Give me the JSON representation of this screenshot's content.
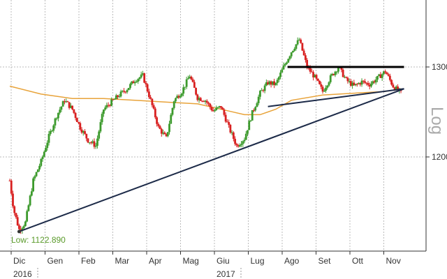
{
  "chart_data": {
    "type": "candlestick",
    "scale": "log",
    "scale_label": "Log",
    "grid": true,
    "months": [
      "Dic",
      "Gen",
      "Feb",
      "Mar",
      "Apr",
      "Mag",
      "Giu",
      "Lug",
      "Ago",
      "Set",
      "Ott",
      "Nov"
    ],
    "years": [
      {
        "label": "2016",
        "month_index": 0
      },
      {
        "label": "2017",
        "month_index": 6
      }
    ],
    "y_ticks": [
      1200,
      1300
    ],
    "ylim": [
      1105,
      1340
    ],
    "low_annotation": "Low: 1122.890",
    "low_value": 1122.89,
    "colors": {
      "up": "#3c9a2c",
      "down": "#d82020",
      "moving_average": "#e8a33a",
      "trendline": "#1c2a48",
      "resistance": "#000000",
      "low_label": "#5a9a2a"
    },
    "price_path": [
      [
        0,
        1175
      ],
      [
        0.5,
        1145
      ],
      [
        1.2,
        1125
      ],
      [
        2.0,
        1132
      ],
      [
        3.0,
        1175
      ],
      [
        4.0,
        1195
      ],
      [
        5.0,
        1222
      ],
      [
        6.0,
        1245
      ],
      [
        7.0,
        1262
      ],
      [
        8.0,
        1252
      ],
      [
        9.0,
        1232
      ],
      [
        10.0,
        1218
      ],
      [
        11.0,
        1212
      ],
      [
        12.0,
        1252
      ],
      [
        13.0,
        1260
      ],
      [
        14.0,
        1268
      ],
      [
        15.0,
        1275
      ],
      [
        16.0,
        1285
      ],
      [
        17.0,
        1290
      ],
      [
        18.0,
        1262
      ],
      [
        19.0,
        1232
      ],
      [
        20.0,
        1220
      ],
      [
        21.0,
        1262
      ],
      [
        22.0,
        1272
      ],
      [
        23.0,
        1290
      ],
      [
        24.0,
        1265
      ],
      [
        25.0,
        1262
      ],
      [
        26.0,
        1250
      ],
      [
        27.0,
        1255
      ],
      [
        28.0,
        1232
      ],
      [
        29.0,
        1212
      ],
      [
        30.0,
        1220
      ],
      [
        31.0,
        1248
      ],
      [
        32.0,
        1270
      ],
      [
        33.0,
        1282
      ],
      [
        34.0,
        1280
      ],
      [
        35.0,
        1300
      ],
      [
        36.0,
        1318
      ],
      [
        37.0,
        1332
      ],
      [
        38.0,
        1300
      ],
      [
        39.0,
        1288
      ],
      [
        40.0,
        1272
      ],
      [
        41.0,
        1288
      ],
      [
        42.0,
        1300
      ],
      [
        43.0,
        1285
      ],
      [
        44.0,
        1278
      ],
      [
        45.0,
        1283
      ],
      [
        46.0,
        1280
      ],
      [
        47.0,
        1287
      ],
      [
        48.0,
        1295
      ],
      [
        49.0,
        1278
      ],
      [
        50.0,
        1270
      ]
    ],
    "moving_average_path": [
      [
        0,
        1278
      ],
      [
        4,
        1269
      ],
      [
        8,
        1264
      ],
      [
        12,
        1264
      ],
      [
        16,
        1262
      ],
      [
        20,
        1260
      ],
      [
        24,
        1258
      ],
      [
        28,
        1250
      ],
      [
        30,
        1246
      ],
      [
        32,
        1246
      ],
      [
        34,
        1252
      ],
      [
        36,
        1262
      ],
      [
        40,
        1268
      ],
      [
        44,
        1270
      ],
      [
        48,
        1272
      ],
      [
        50,
        1275
      ]
    ],
    "trendlines": [
      {
        "kind": "support",
        "from": [
          1.2,
          1123
        ],
        "to": [
          50.4,
          1275
        ]
      },
      {
        "kind": "lower-high",
        "from": [
          33.0,
          1255
        ],
        "to": [
          50.4,
          1275
        ]
      },
      {
        "kind": "resistance",
        "from": [
          35.5,
          1300
        ],
        "to": [
          50.4,
          1300
        ]
      }
    ]
  }
}
